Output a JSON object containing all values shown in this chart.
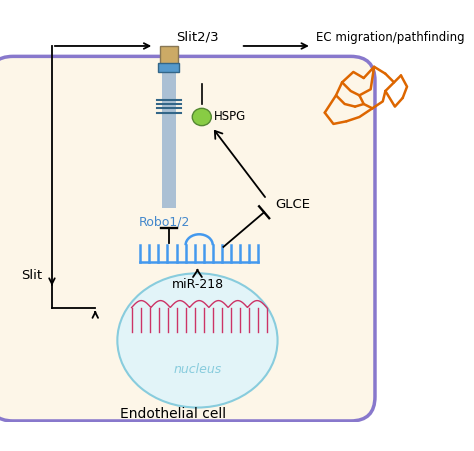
{
  "fig_width": 4.74,
  "fig_height": 4.52,
  "dpi": 100,
  "bg_color": "#ffffff",
  "cell_bg": "#fdf6e8",
  "cell_border_color": "#8878cc",
  "nucleus_bg": "#e2f4f8",
  "nucleus_border_color": "#88ccdd",
  "miR_color": "#4499ee",
  "robo_color": "#4488cc",
  "receptor_body_color": "#88aacc",
  "receptor_head_color": "#ccaa66",
  "hspg_color": "#88cc44",
  "dna_color": "#cc3366",
  "orange_color": "#dd6600",
  "black": "#000000",
  "bottom_label": "Endothelial cell",
  "slit_label": "Slit",
  "slit23_label": "Slit2/3",
  "ec_label": "EC migration/pathfinding",
  "robo12_label": "Robo1/2",
  "glce_label": "GLCE",
  "hspg_label": "HSPG",
  "mir_label": "miR-218",
  "nucleus_label": "nucleus"
}
